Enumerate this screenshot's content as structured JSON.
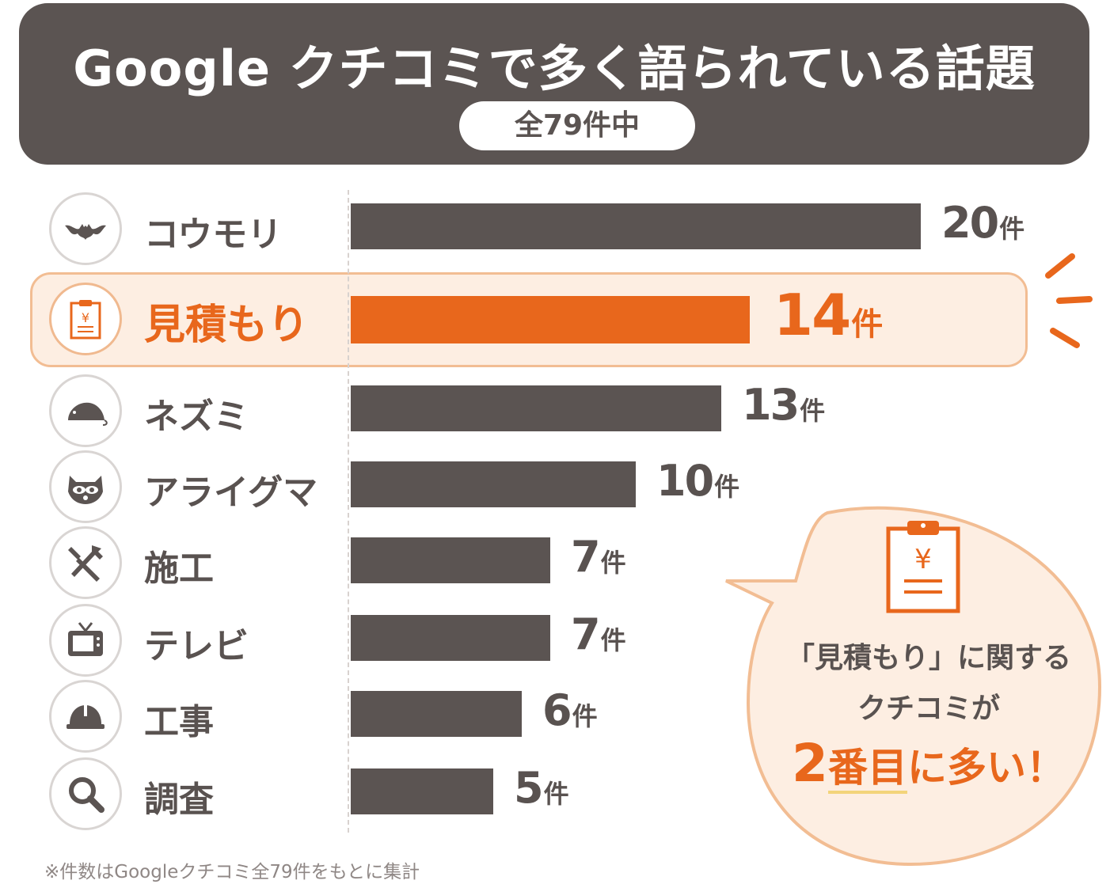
{
  "header": {
    "title": "Google クチコミで多く語られている話題",
    "subtitle": "全79件中"
  },
  "chart_data": {
    "type": "bar",
    "orientation": "horizontal",
    "title": "Google クチコミで多く語られている話題",
    "subtitle": "全79件中",
    "unit": "件",
    "categories": [
      "コウモリ",
      "見積もり",
      "ネズミ",
      "アライグマ",
      "施工",
      "テレビ",
      "工事",
      "調査"
    ],
    "values": [
      20,
      14,
      13,
      10,
      7,
      7,
      6,
      5
    ],
    "value_labels": [
      "20",
      "14",
      "13",
      "10",
      "7",
      "7",
      "6",
      "5"
    ],
    "icons": [
      "bat-icon",
      "estimate-clipboard-icon",
      "rat-icon",
      "raccoon-icon",
      "tools-icon",
      "tv-icon",
      "helmet-icon",
      "magnifier-icon"
    ],
    "highlight_index": 1,
    "xlim": [
      0,
      20
    ],
    "grid": false,
    "legend": "none",
    "colors": {
      "bar": "#5b5452",
      "highlight": "#e8671c",
      "highlight_bg": "#fdeee2",
      "highlight_border": "#f2bd93"
    }
  },
  "callout": {
    "icon": "estimate-clipboard-icon",
    "line1": "「見積もり」に関する",
    "line2": "クチコミが",
    "line3_num": "2",
    "line3_mid": "番目",
    "line3_rest": "に多い！"
  },
  "footnote": "※件数はGoogleクチコミ全79件をもとに集計",
  "colors": {
    "header_bg": "#5b5452",
    "accent": "#e8671c",
    "text": "#595250"
  }
}
